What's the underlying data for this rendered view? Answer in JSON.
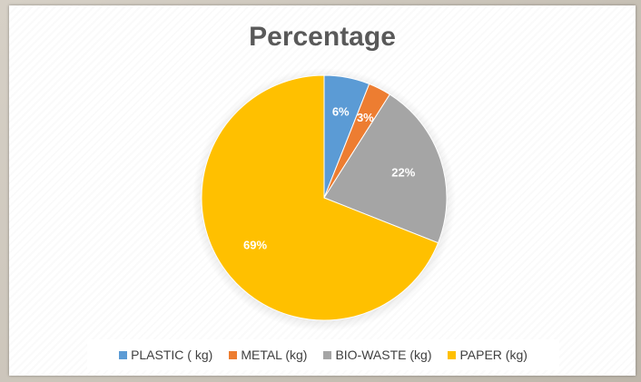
{
  "chart_data": {
    "type": "pie",
    "title": "Percentage",
    "categories": [
      "PLASTIC ( kg)",
      "METAL (kg)",
      "BIO-WASTE (kg)",
      "PAPER (kg)"
    ],
    "values": [
      6,
      3,
      22,
      69
    ],
    "data_labels": [
      "6%",
      "3%",
      "22%",
      "69%"
    ],
    "colors": [
      "#5B9BD5",
      "#ED7D31",
      "#A5A5A5",
      "#FFC000"
    ],
    "legend_position": "bottom"
  }
}
